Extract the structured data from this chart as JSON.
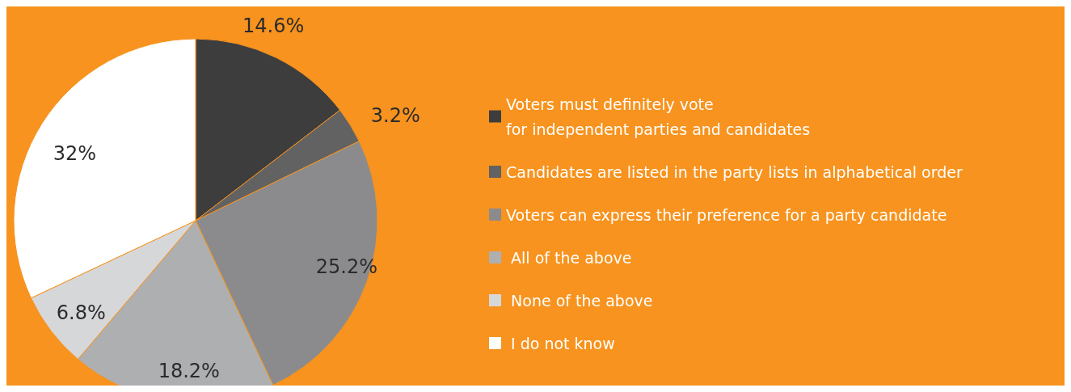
{
  "chart_data": {
    "type": "pie",
    "categories": [
      "Voters must definitely vote\nfor independent parties and candidates",
      "Candidates are listed in the party lists in alphabetical order",
      "Voters can express their preference for a party candidate",
      " All of the above",
      " None of the above",
      " I do not know"
    ],
    "values": [
      14.6,
      3.2,
      25.2,
      18.2,
      6.8,
      32
    ],
    "colors": [
      "#3d3d3d",
      "#626262",
      "#8b8b8d",
      "#aeafb1",
      "#d6d7d9",
      "#ffffff"
    ],
    "value_labels": [
      "14.6%",
      "3.2%",
      "25.2%",
      "18.2%",
      "6.8%",
      "32%"
    ],
    "legend": "right"
  }
}
